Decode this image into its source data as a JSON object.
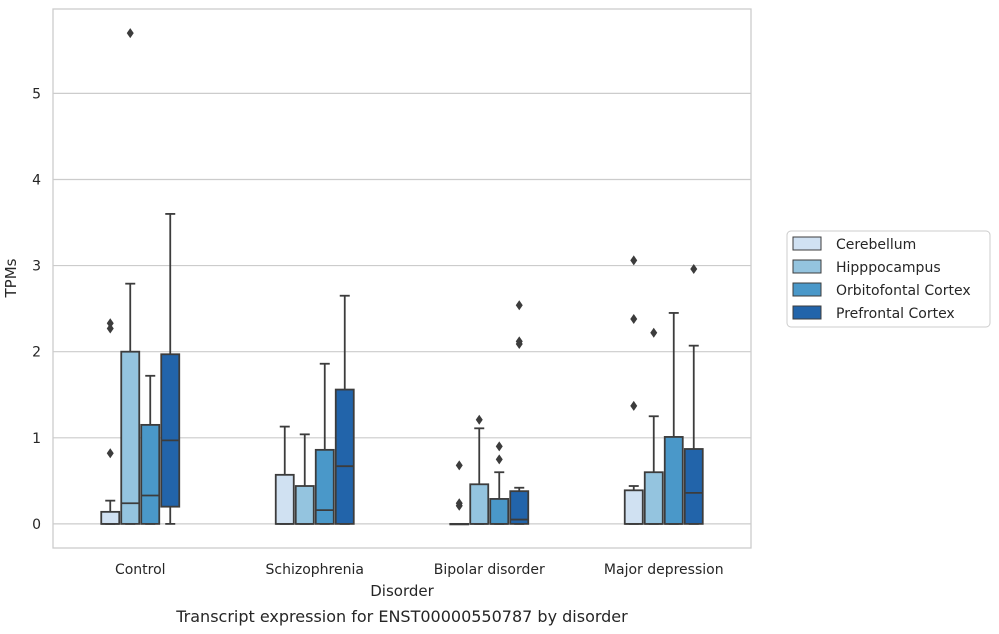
{
  "chart_data": {
    "type": "box",
    "categories": [
      "Control",
      "Schizophrenia",
      "Bipolar disorder",
      "Major depression"
    ],
    "xlabel": "Disorder",
    "ylabel": "TPMs",
    "caption": "Transcript expression for ENST00000550787 by disorder",
    "ylim": [
      -0.28,
      5.98
    ],
    "yticks": [
      0,
      1,
      2,
      3,
      4,
      5
    ],
    "grid": "horizontal",
    "legend_position": "right",
    "series": [
      {
        "name": "Cerebellum",
        "color": "#d0e1f2",
        "boxes": [
          {
            "min": 0,
            "q1": 0,
            "median": 0,
            "q3": 0.14,
            "max": 0.27,
            "outliers": [
              0.82,
              2.27,
              2.33
            ]
          },
          {
            "min": 0,
            "q1": 0,
            "median": 0,
            "q3": 0.57,
            "max": 1.13,
            "outliers": []
          },
          {
            "min": 0,
            "q1": 0,
            "median": 0,
            "q3": 0,
            "max": 0,
            "outliers": [
              0.21,
              0.24,
              0.68
            ]
          },
          {
            "min": 0,
            "q1": 0,
            "median": 0,
            "q3": 0.39,
            "max": 0.44,
            "outliers": [
              1.37,
              2.38,
              3.06
            ]
          }
        ]
      },
      {
        "name": "Hipppocampus",
        "color": "#94c4df",
        "boxes": [
          {
            "min": 0,
            "q1": 0,
            "median": 0.24,
            "q3": 2.0,
            "max": 2.79,
            "outliers": [
              5.7
            ]
          },
          {
            "min": 0,
            "q1": 0,
            "median": 0,
            "q3": 0.44,
            "max": 1.04,
            "outliers": []
          },
          {
            "min": 0,
            "q1": 0,
            "median": 0,
            "q3": 0.46,
            "max": 1.11,
            "outliers": [
              1.21
            ]
          },
          {
            "min": 0,
            "q1": 0,
            "median": 0,
            "q3": 0.6,
            "max": 1.25,
            "outliers": [
              2.22
            ]
          }
        ]
      },
      {
        "name": "Orbitofontal Cortex",
        "color": "#4a98c9",
        "boxes": [
          {
            "min": 0,
            "q1": 0,
            "median": 0.33,
            "q3": 1.15,
            "max": 1.72,
            "outliers": []
          },
          {
            "min": 0,
            "q1": 0,
            "median": 0.16,
            "q3": 0.86,
            "max": 1.86,
            "outliers": []
          },
          {
            "min": 0,
            "q1": 0,
            "median": 0,
            "q3": 0.29,
            "max": 0.6,
            "outliers": [
              0.75,
              0.9
            ]
          },
          {
            "min": 0,
            "q1": 0,
            "median": 0,
            "q3": 1.01,
            "max": 2.45,
            "outliers": []
          }
        ]
      },
      {
        "name": "Prefrontal Cortex",
        "color": "#2264aa",
        "boxes": [
          {
            "min": 0,
            "q1": 0.2,
            "median": 0.97,
            "q3": 1.97,
            "max": 3.6,
            "outliers": []
          },
          {
            "min": 0,
            "q1": 0,
            "median": 0.67,
            "q3": 1.56,
            "max": 2.65,
            "outliers": []
          },
          {
            "min": 0,
            "q1": 0,
            "median": 0.05,
            "q3": 0.38,
            "max": 0.42,
            "outliers": [
              2.09,
              2.12,
              2.54
            ]
          },
          {
            "min": 0,
            "q1": 0,
            "median": 0.36,
            "q3": 0.87,
            "max": 2.07,
            "outliers": [
              2.96
            ]
          }
        ]
      }
    ]
  }
}
